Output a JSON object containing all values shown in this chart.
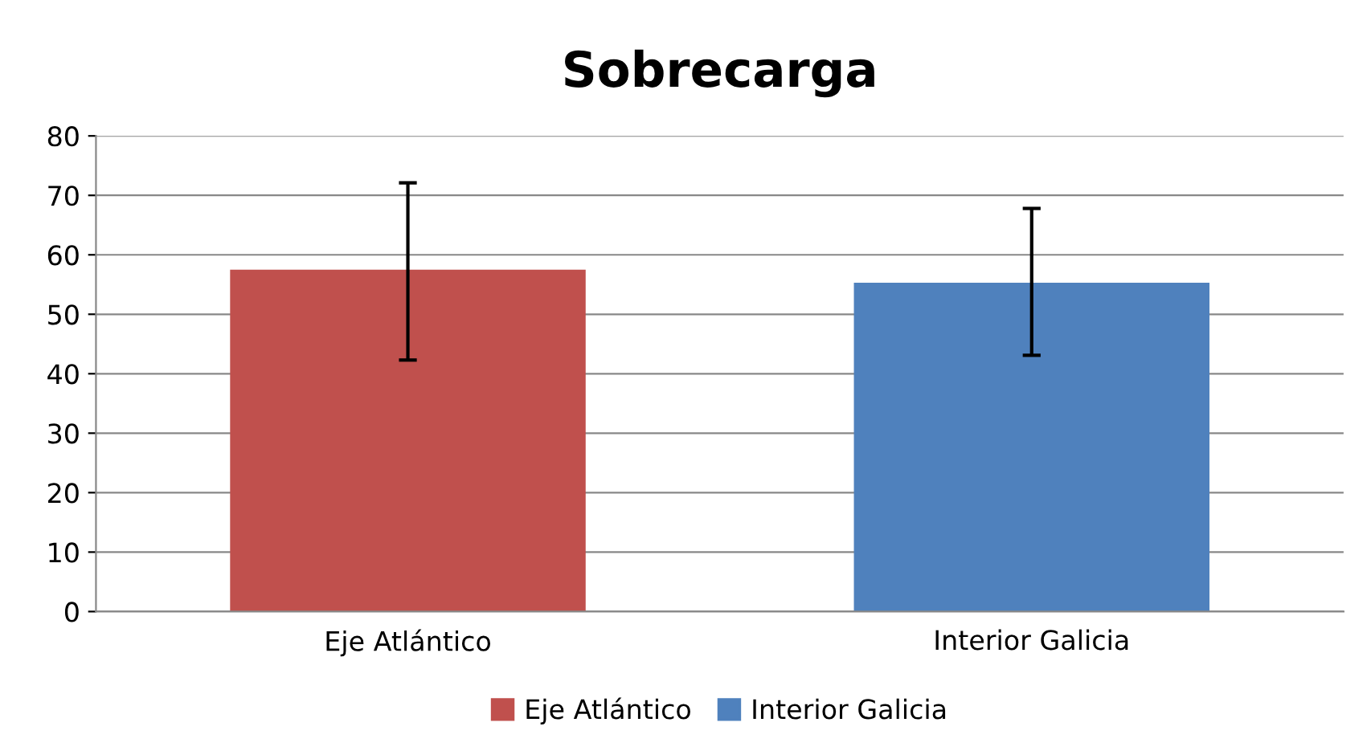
{
  "chart_data": {
    "type": "bar",
    "title": "Sobrecarga",
    "categories": [
      "Eje Atlántico",
      "Interior Galicia"
    ],
    "series": [
      {
        "name": "Eje Atlántico",
        "color": "#c0504d",
        "values": [
          57.5,
          null
        ],
        "errors": [
          [
            42.3,
            72.1
          ],
          null
        ]
      },
      {
        "name": "Interior Galicia",
        "color": "#4f81bd",
        "values": [
          null,
          55.3
        ],
        "errors": [
          null,
          [
            43.1,
            67.8
          ]
        ]
      }
    ],
    "ylim": [
      0,
      80
    ],
    "yticks": [
      0,
      10,
      20,
      30,
      40,
      50,
      60,
      70,
      80
    ],
    "grid": "y",
    "legend": "bottom"
  }
}
